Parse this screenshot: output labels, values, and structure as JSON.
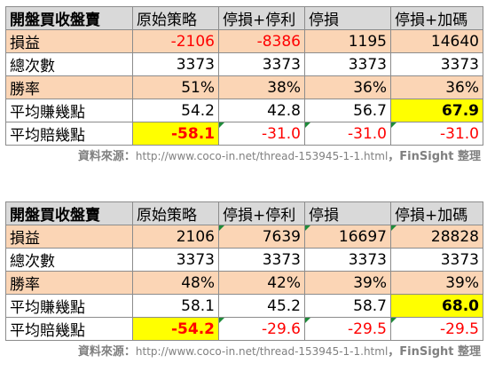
{
  "watermark": "FinSight",
  "tables": [
    {
      "header": [
        "開盤買收盤賣",
        "原始策略",
        "停損+停利",
        "停損",
        "停損+加碼"
      ],
      "rows": [
        {
          "label": "損益",
          "values": [
            "-2106",
            "-8386",
            "1195",
            "14640"
          ]
        },
        {
          "label": "總次數",
          "values": [
            "3373",
            "3373",
            "3373",
            "3373"
          ]
        },
        {
          "label": "勝率",
          "values": [
            "51%",
            "38%",
            "36%",
            "36%"
          ]
        },
        {
          "label": "平均賺幾點",
          "values": [
            "54.2",
            "42.8",
            "56.7",
            "67.9"
          ]
        },
        {
          "label": "平均賠幾點",
          "values": [
            "-58.1",
            "-31.0",
            "-31.0",
            "-31.0"
          ]
        }
      ],
      "source": {
        "prefix": "資料來源：",
        "url": "http://www.coco-in.net/thread-153945-1-1.html",
        "suffix": "，FinSight 整理"
      }
    },
    {
      "header": [
        "開盤買收盤賣",
        "原始策略",
        "停損+停利",
        "停損",
        "停損+加碼"
      ],
      "rows": [
        {
          "label": "損益",
          "values": [
            "2106",
            "7639",
            "16697",
            "28828"
          ]
        },
        {
          "label": "總次數",
          "values": [
            "3373",
            "3373",
            "3373",
            "3373"
          ]
        },
        {
          "label": "勝率",
          "values": [
            "48%",
            "42%",
            "39%",
            "39%"
          ]
        },
        {
          "label": "平均賺幾點",
          "values": [
            "58.1",
            "45.2",
            "58.7",
            "68.0"
          ]
        },
        {
          "label": "平均賠幾點",
          "values": [
            "-54.2",
            "-29.6",
            "-29.5",
            "-29.5"
          ]
        }
      ],
      "source": {
        "prefix": "資料來源：",
        "url": "http://www.coco-in.net/thread-153945-1-1.html",
        "suffix": "，FinSight 整理"
      }
    }
  ],
  "colors": {
    "header_bg": "#d9d9d9",
    "peach_row_bg": "#fbd5b5",
    "highlight_bg": "#ffff00",
    "negative_text": "#ff0000",
    "source_text": "#808080"
  }
}
